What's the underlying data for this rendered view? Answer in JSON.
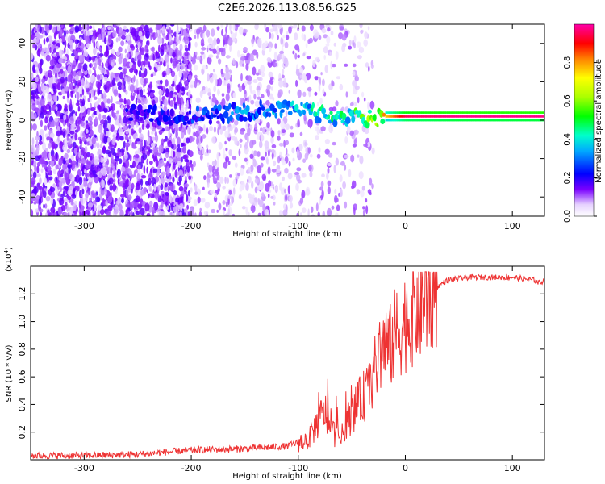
{
  "chart_data": [
    {
      "type": "heatmap",
      "title": "C2E6.2026.113.08.56.G25",
      "xlabel": "Height of straight line (km)",
      "ylabel": "Frequency (Hz)",
      "xlim": [
        -350,
        130
      ],
      "ylim": [
        -50,
        50
      ],
      "xticks": [
        -300,
        -200,
        -100,
        0,
        100
      ],
      "yticks": [
        -40,
        -20,
        0,
        20,
        40
      ],
      "colorbar": {
        "label": "Normalized spectral amplitude",
        "range": [
          0.0,
          1.0
        ],
        "ticks": [
          "0.0",
          "0.2",
          "0.4",
          "0.6",
          "0.8"
        ],
        "tick_values": [
          0.0,
          0.2,
          0.4,
          0.6,
          0.8
        ],
        "colors": [
          "#ffffff",
          "#e6d2ff",
          "#7a00ff",
          "#3a00ff",
          "#0000ff",
          "#00aaff",
          "#00ffcc",
          "#00ff00",
          "#aaff00",
          "#ffff00",
          "#ff8000",
          "#ff0000",
          "#ff00aa"
        ]
      },
      "signal_track": [
        {
          "x": -260,
          "freq": 4,
          "amp": 0.2
        },
        {
          "x": -220,
          "freq": 2,
          "amp": 0.25
        },
        {
          "x": -180,
          "freq": 3,
          "amp": 0.3
        },
        {
          "x": -140,
          "freq": 5,
          "amp": 0.35
        },
        {
          "x": -110,
          "freq": 7,
          "amp": 0.4
        },
        {
          "x": -80,
          "freq": 3,
          "amp": 0.45
        },
        {
          "x": -50,
          "freq": 1,
          "amp": 0.5
        },
        {
          "x": -25,
          "freq": 1,
          "amp": 0.7
        },
        {
          "x": 0,
          "freq": 1.5,
          "amp": 0.95
        },
        {
          "x": 50,
          "freq": 1.5,
          "amp": 0.98
        },
        {
          "x": 130,
          "freq": 1.5,
          "amp": 0.98
        }
      ],
      "noise_regions": [
        {
          "x_range": [
            -350,
            -200
          ],
          "density": "high"
        },
        {
          "x_range": [
            -200,
            -110
          ],
          "density": "medium"
        },
        {
          "x_range": [
            -110,
            -30
          ],
          "density": "low"
        }
      ]
    },
    {
      "type": "line",
      "title": "",
      "xlabel": "Height of straight line (km)",
      "ylabel": "SNR (10 * v/v)",
      "exponent": "4",
      "xlim": [
        -350,
        130
      ],
      "ylim": [
        0,
        1.4
      ],
      "xticks": [
        -300,
        -200,
        -100,
        0,
        100
      ],
      "yticks": [
        0.2,
        0.4,
        0.6,
        0.8,
        1.0,
        1.2
      ],
      "series": [
        {
          "name": "SNR",
          "color": "#ee3333",
          "x": [
            -350,
            -300,
            -250,
            -200,
            -150,
            -110,
            -90,
            -80,
            -75,
            -70,
            -65,
            -60,
            -55,
            -50,
            -45,
            -40,
            -35,
            -30,
            -25,
            -20,
            -15,
            -10,
            -5,
            0,
            5,
            10,
            15,
            20,
            25,
            30,
            35,
            40,
            50,
            60,
            80,
            100,
            110,
            120,
            125,
            130
          ],
          "values": [
            0.03,
            0.03,
            0.04,
            0.07,
            0.08,
            0.1,
            0.15,
            0.3,
            0.35,
            0.22,
            0.18,
            0.15,
            0.28,
            0.32,
            0.4,
            0.45,
            0.5,
            0.62,
            0.72,
            0.85,
            0.8,
            0.9,
            0.95,
            1.0,
            1.05,
            1.1,
            1.12,
            1.18,
            1.22,
            1.25,
            1.28,
            1.3,
            1.31,
            1.32,
            1.32,
            1.32,
            1.31,
            1.3,
            1.28,
            1.3
          ]
        }
      ]
    }
  ]
}
